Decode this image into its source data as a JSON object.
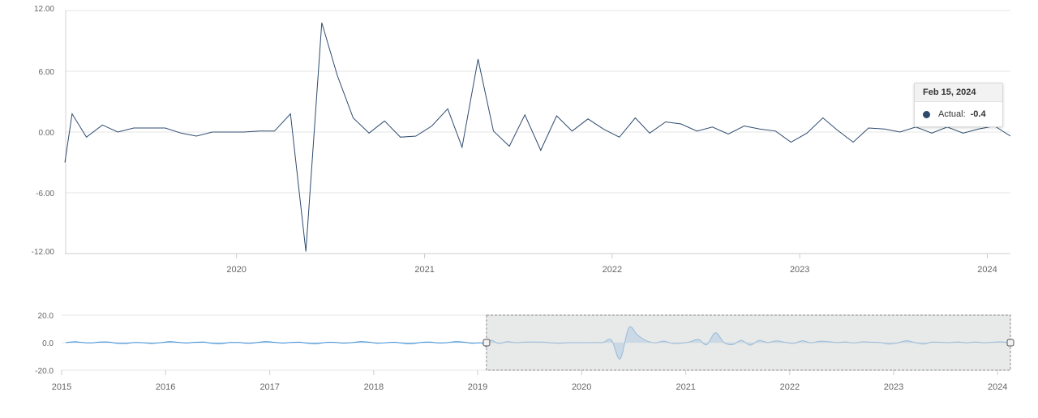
{
  "chart_data": [
    {
      "type": "line",
      "role": "main",
      "ylim": [
        -12,
        12
      ],
      "yticks": [
        {
          "v": 12,
          "label": "12.00"
        },
        {
          "v": 6,
          "label": "6.00"
        },
        {
          "v": 0,
          "label": "0.00"
        },
        {
          "v": -6,
          "label": "-6.00"
        },
        {
          "v": -12,
          "label": "-12.00"
        }
      ],
      "xlim": [
        "2019-02-01",
        "2024-02-15"
      ],
      "xticks": [
        {
          "date": "2020-01-01",
          "label": "2020"
        },
        {
          "date": "2021-01-01",
          "label": "2021"
        },
        {
          "date": "2022-01-01",
          "label": "2022"
        },
        {
          "date": "2023-01-01",
          "label": "2023"
        },
        {
          "date": "2024-01-01",
          "label": "2024"
        }
      ],
      "color": "#2e4b6e",
      "series": [
        {
          "name": "Actual",
          "points": [
            [
              "2019-02-01",
              -3.0
            ],
            [
              "2019-02-15",
              1.8
            ],
            [
              "2019-03-15",
              -0.5
            ],
            [
              "2019-04-15",
              0.7
            ],
            [
              "2019-05-15",
              0.0
            ],
            [
              "2019-06-15",
              0.4
            ],
            [
              "2019-07-15",
              0.4
            ],
            [
              "2019-08-15",
              0.4
            ],
            [
              "2019-09-15",
              -0.1
            ],
            [
              "2019-10-15",
              -0.4
            ],
            [
              "2019-11-15",
              0.0
            ],
            [
              "2019-12-15",
              0.0
            ],
            [
              "2020-01-15",
              0.0
            ],
            [
              "2020-02-15",
              0.1
            ],
            [
              "2020-03-15",
              0.1
            ],
            [
              "2020-04-15",
              1.8
            ],
            [
              "2020-05-15",
              -11.8
            ],
            [
              "2020-06-15",
              10.8
            ],
            [
              "2020-07-15",
              5.6
            ],
            [
              "2020-08-15",
              1.4
            ],
            [
              "2020-09-15",
              -0.1
            ],
            [
              "2020-10-15",
              1.1
            ],
            [
              "2020-11-15",
              -0.5
            ],
            [
              "2020-12-15",
              -0.4
            ],
            [
              "2021-01-15",
              0.6
            ],
            [
              "2021-02-15",
              2.3
            ],
            [
              "2021-03-15",
              -1.5
            ],
            [
              "2021-04-15",
              7.2
            ],
            [
              "2021-05-15",
              0.1
            ],
            [
              "2021-06-15",
              -1.4
            ],
            [
              "2021-07-15",
              1.7
            ],
            [
              "2021-08-15",
              -1.8
            ],
            [
              "2021-09-15",
              1.6
            ],
            [
              "2021-10-15",
              0.1
            ],
            [
              "2021-11-15",
              1.3
            ],
            [
              "2021-12-15",
              0.3
            ],
            [
              "2022-01-15",
              -0.5
            ],
            [
              "2022-02-15",
              1.4
            ],
            [
              "2022-03-15",
              -0.1
            ],
            [
              "2022-04-15",
              1.0
            ],
            [
              "2022-05-15",
              0.8
            ],
            [
              "2022-06-15",
              0.1
            ],
            [
              "2022-07-15",
              0.5
            ],
            [
              "2022-08-15",
              -0.2
            ],
            [
              "2022-09-15",
              0.6
            ],
            [
              "2022-10-15",
              0.3
            ],
            [
              "2022-11-15",
              0.1
            ],
            [
              "2022-12-15",
              -1.0
            ],
            [
              "2023-01-15",
              -0.1
            ],
            [
              "2023-02-15",
              1.4
            ],
            [
              "2023-03-15",
              0.2
            ],
            [
              "2023-04-15",
              -1.0
            ],
            [
              "2023-05-15",
              0.4
            ],
            [
              "2023-06-15",
              0.3
            ],
            [
              "2023-07-15",
              0.0
            ],
            [
              "2023-08-15",
              0.5
            ],
            [
              "2023-09-15",
              -0.1
            ],
            [
              "2023-10-15",
              0.5
            ],
            [
              "2023-11-15",
              -0.1
            ],
            [
              "2023-12-15",
              0.3
            ],
            [
              "2024-01-15",
              0.6
            ],
            [
              "2024-02-15",
              -0.4
            ]
          ]
        }
      ]
    },
    {
      "type": "area",
      "role": "navigator",
      "ylim": [
        -20,
        20
      ],
      "yticks": [
        {
          "v": 20,
          "label": "20.0"
        },
        {
          "v": 0,
          "label": "0.0"
        },
        {
          "v": -20,
          "label": "-20.0"
        }
      ],
      "xlim": [
        "2015-01-01",
        "2024-02-15"
      ],
      "xticks": [
        {
          "date": "2015-01-01",
          "label": "2015"
        },
        {
          "date": "2016-01-01",
          "label": "2016"
        },
        {
          "date": "2017-01-01",
          "label": "2017"
        },
        {
          "date": "2018-01-01",
          "label": "2018"
        },
        {
          "date": "2019-01-01",
          "label": "2019"
        },
        {
          "date": "2020-01-01",
          "label": "2020"
        },
        {
          "date": "2021-01-01",
          "label": "2021"
        },
        {
          "date": "2022-01-01",
          "label": "2022"
        },
        {
          "date": "2023-01-01",
          "label": "2023"
        },
        {
          "date": "2024-01-01",
          "label": "2024"
        }
      ],
      "selection": [
        "2019-02-01",
        "2024-02-15"
      ],
      "color": "#3b8fd9",
      "fill": "#9ccbf0"
    }
  ],
  "tooltip": {
    "date": "Feb 15, 2024",
    "series_label": "Actual:",
    "value": "-0.4",
    "marker_color": "#2e4b6e"
  }
}
